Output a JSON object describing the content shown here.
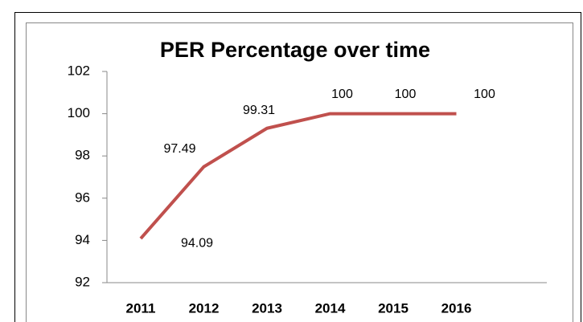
{
  "chart_data": {
    "type": "line",
    "title": "PER Percentage over time",
    "categories": [
      "2011",
      "2012",
      "2013",
      "2014",
      "2015",
      "2016"
    ],
    "values": [
      94.09,
      97.49,
      99.31,
      100,
      100,
      100
    ],
    "color": "#c0504d",
    "ylim": [
      92,
      102
    ],
    "yticks": [
      92,
      94,
      96,
      98,
      100,
      102
    ],
    "grid": false
  }
}
